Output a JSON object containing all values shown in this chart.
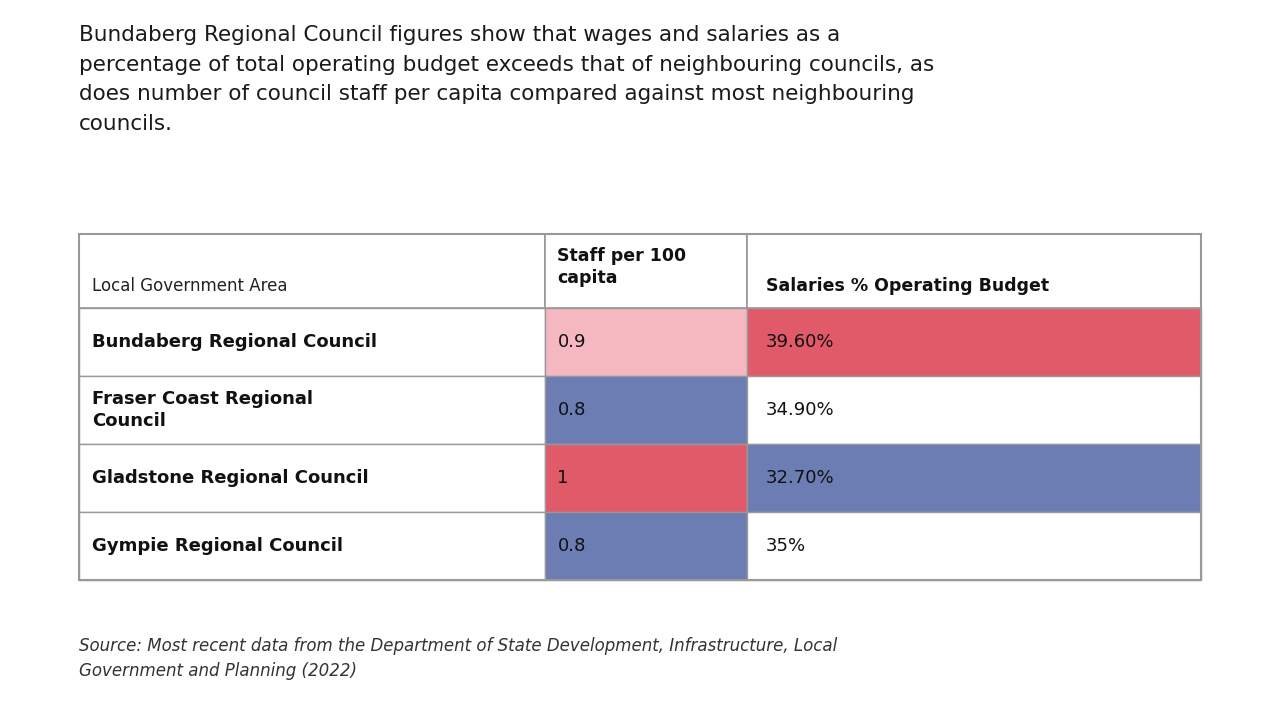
{
  "title_text": "Bundaberg Regional Council figures show that wages and salaries as a\npercentage of total operating budget exceeds that of neighbouring councils, as\ndoes number of council staff per capita compared against most neighbouring\ncouncils.",
  "source_text": "Source: Most recent data from the Department of State Development, Infrastructure, Local\nGovernment and Planning (2022)",
  "col_headers": [
    "Local Government Area",
    "Staff per 100\ncapita",
    "Salaries % Operating Budget"
  ],
  "rows": [
    {
      "name": "Bundaberg Regional Council",
      "staff": "0.9",
      "salary": "39.60%",
      "staff_color": "#f5b8c0",
      "salary_color": "#e05a6a"
    },
    {
      "name": "Fraser Coast Regional\nCouncil",
      "staff": "0.8",
      "salary": "34.90%",
      "staff_color": "#6b7db3",
      "salary_color": "#ffffff"
    },
    {
      "name": "Gladstone Regional Council",
      "staff": "1",
      "salary": "32.70%",
      "staff_color": "#e05a6a",
      "salary_color": "#6b7db3"
    },
    {
      "name": "Gympie Regional Council",
      "staff": "0.8",
      "salary": "35%",
      "staff_color": "#6b7db3",
      "salary_color": "#ffffff"
    }
  ],
  "bg_color": "#ffffff",
  "table_border_color": "#999999",
  "title_fontsize": 15.5,
  "source_fontsize": 12.0,
  "header_fontsize": 12.5,
  "data_fontsize": 13.0,
  "row_name_fontsize": 13.0
}
